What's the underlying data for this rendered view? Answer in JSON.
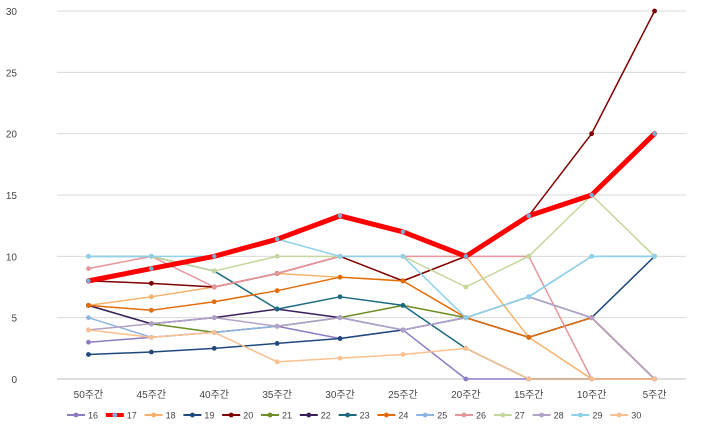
{
  "chart_data": {
    "type": "line",
    "title": "",
    "xlabel": "",
    "ylabel": "",
    "categories": [
      "50주간",
      "45주간",
      "40주간",
      "35주간",
      "30주간",
      "25주간",
      "20주간",
      "15주간",
      "10주간",
      "5주간"
    ],
    "ylim": [
      0,
      30
    ],
    "yticks": [
      0,
      5,
      10,
      15,
      20,
      25,
      30
    ],
    "grid": true,
    "legend_position": "bottom",
    "series": [
      {
        "name": "16",
        "color": "#8e7cc3",
        "values": [
          3,
          3.4,
          3.8,
          4.3,
          3.3,
          4,
          0,
          0,
          0,
          0
        ]
      },
      {
        "name": "17",
        "color": "#ff0000",
        "values": [
          8,
          9,
          10,
          11.4,
          13.3,
          12,
          10,
          13.3,
          15,
          20
        ],
        "highlight": true
      },
      {
        "name": "18",
        "color": "#f6b26b",
        "values": [
          6,
          6.7,
          7.5,
          8.6,
          8.3,
          8,
          10,
          3.4,
          0,
          0
        ]
      },
      {
        "name": "19",
        "color": "#1f497d",
        "values": [
          2,
          2.2,
          2.5,
          2.9,
          3.3,
          4,
          5,
          6.7,
          5,
          10
        ]
      },
      {
        "name": "20",
        "color": "#7f0000",
        "values": [
          8,
          7.8,
          7.5,
          8.6,
          10,
          8,
          10,
          13.3,
          20,
          30
        ]
      },
      {
        "name": "21",
        "color": "#6b8e23",
        "values": [
          6,
          4.5,
          3.8,
          4.3,
          5,
          6,
          5,
          3.4,
          5,
          0
        ]
      },
      {
        "name": "22",
        "color": "#3b1f5c",
        "values": [
          6,
          4.5,
          5,
          5.7,
          5,
          4,
          5,
          3.4,
          5,
          0
        ]
      },
      {
        "name": "23",
        "color": "#1b6a80",
        "values": [
          10,
          10,
          8.8,
          5.7,
          6.7,
          6,
          2.5,
          0,
          0,
          0
        ]
      },
      {
        "name": "24",
        "color": "#e36c09",
        "values": [
          6,
          5.6,
          6.3,
          7.2,
          8.3,
          8,
          5,
          3.4,
          5,
          0
        ]
      },
      {
        "name": "25",
        "color": "#8eb4e3",
        "values": [
          5,
          3.4,
          3.8,
          4.3,
          5,
          4,
          5,
          6.7,
          10,
          10
        ]
      },
      {
        "name": "26",
        "color": "#e6959a",
        "values": [
          9,
          10,
          7.5,
          8.6,
          10,
          10,
          10,
          10,
          0,
          0
        ]
      },
      {
        "name": "27",
        "color": "#c3d69b",
        "values": [
          10,
          10,
          8.8,
          10,
          10,
          10,
          7.5,
          10,
          15,
          10
        ]
      },
      {
        "name": "28",
        "color": "#b3a2c7",
        "values": [
          4,
          4.5,
          5,
          4.3,
          5,
          4,
          5,
          6.7,
          5,
          0
        ]
      },
      {
        "name": "29",
        "color": "#8ed1ea",
        "values": [
          10,
          10,
          10,
          11.4,
          10,
          10,
          5,
          6.7,
          10,
          10
        ]
      },
      {
        "name": "30",
        "color": "#fac08f",
        "values": [
          4,
          3.4,
          3.8,
          1.4,
          1.7,
          2,
          2.5,
          0,
          0,
          0
        ]
      }
    ]
  }
}
